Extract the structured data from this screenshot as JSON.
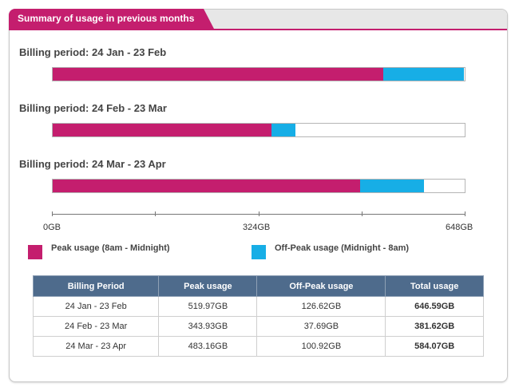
{
  "header": {
    "title": "Summary of usage in previous months"
  },
  "colors": {
    "peak": "#c41e6e",
    "off_peak": "#17aee6",
    "table_header": "#4e6b8c"
  },
  "periods": [
    {
      "label": "Billing period: 24 Jan - 23 Feb",
      "peak_gb": 519.97,
      "offpeak_gb": 126.62
    },
    {
      "label": "Billing period: 24 Feb - 23 Mar",
      "peak_gb": 343.93,
      "offpeak_gb": 37.69
    },
    {
      "label": "Billing period: 24 Mar - 23 Apr",
      "peak_gb": 483.16,
      "offpeak_gb": 100.92
    }
  ],
  "axis": {
    "max_gb": 648,
    "ticks": [
      "0GB",
      "324GB",
      "648GB"
    ]
  },
  "legend": {
    "peak": "Peak usage (8am - Midnight)",
    "off_peak": "Off-Peak usage (Midnight - 8am)"
  },
  "table": {
    "headers": [
      "Billing Period",
      "Peak usage",
      "Off-Peak usage",
      "Total usage"
    ],
    "rows": [
      [
        "24 Jan - 23 Feb",
        "519.97GB",
        "126.62GB",
        "646.59GB"
      ],
      [
        "24 Feb - 23 Mar",
        "343.93GB",
        "37.69GB",
        "381.62GB"
      ],
      [
        "24 Mar - 23 Apr",
        "483.16GB",
        "100.92GB",
        "584.07GB"
      ]
    ]
  }
}
